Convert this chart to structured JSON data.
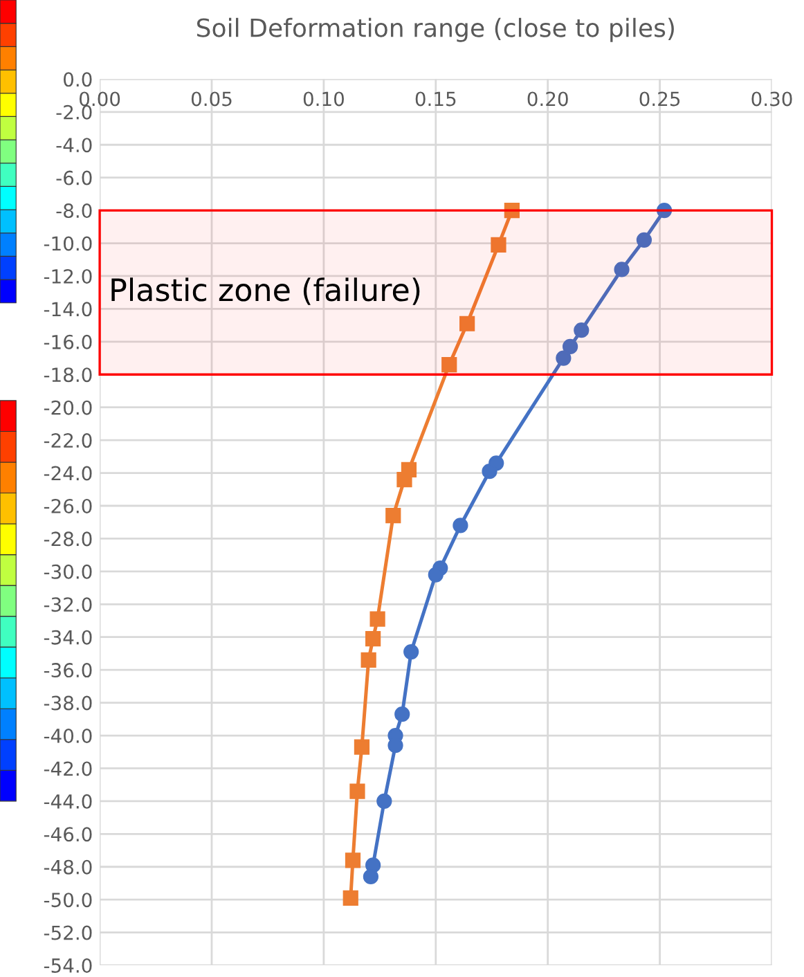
{
  "chart_data": {
    "type": "line",
    "title": "Soil Deformation range (close to piles)",
    "series": [
      {
        "color": "#ed7d31",
        "marker": "square",
        "x": [
          0.184,
          0.178,
          0.164,
          0.156,
          0.138,
          0.136,
          0.131,
          0.124,
          0.122,
          0.12,
          0.117,
          0.115,
          0.113,
          0.112
        ],
        "values": [
          -8.0,
          -10.1,
          -14.9,
          -17.4,
          -23.8,
          -24.4,
          -26.6,
          -32.9,
          -34.1,
          -35.4,
          -40.7,
          -43.4,
          -47.6,
          -49.9
        ]
      },
      {
        "color": "#4472c4",
        "marker": "circle",
        "x": [
          0.252,
          0.243,
          0.233,
          0.215,
          0.21,
          0.207,
          0.177,
          0.174,
          0.161,
          0.152,
          0.15,
          0.139,
          0.135,
          0.132,
          0.132,
          0.127,
          0.122,
          0.121
        ],
        "values": [
          -8.0,
          -9.8,
          -11.6,
          -15.3,
          -16.3,
          -17.0,
          -23.4,
          -23.9,
          -27.2,
          -29.8,
          -30.2,
          -34.9,
          -38.7,
          -40.0,
          -40.6,
          -44.0,
          -47.9,
          -48.6
        ]
      }
    ],
    "xlim": [
      0.0,
      0.3
    ],
    "xticks": [
      {
        "value": 0.0,
        "label": "0.00"
      },
      {
        "value": 0.05,
        "label": "0.05"
      },
      {
        "value": 0.1,
        "label": "0.10"
      },
      {
        "value": 0.15,
        "label": "0.15"
      },
      {
        "value": 0.2,
        "label": "0.20"
      },
      {
        "value": 0.25,
        "label": "0.25"
      },
      {
        "value": 0.3,
        "label": "0.30"
      }
    ],
    "ylim": [
      -54.0,
      0.0
    ],
    "yticks": [
      {
        "value": 0,
        "label": "0.0"
      },
      {
        "value": -2,
        "label": "-2.0"
      },
      {
        "value": -4,
        "label": "-4.0"
      },
      {
        "value": -6,
        "label": "-6.0"
      },
      {
        "value": -8,
        "label": "-8.0"
      },
      {
        "value": -10,
        "label": "-10.0"
      },
      {
        "value": -12,
        "label": "-12.0"
      },
      {
        "value": -14,
        "label": "-14.0"
      },
      {
        "value": -16,
        "label": "-16.0"
      },
      {
        "value": -18,
        "label": "-18.0"
      },
      {
        "value": -20,
        "label": "-20.0"
      },
      {
        "value": -22,
        "label": "-22.0"
      },
      {
        "value": -24,
        "label": "-24.0"
      },
      {
        "value": -26,
        "label": "-26.0"
      },
      {
        "value": -28,
        "label": "-28.0"
      },
      {
        "value": -30,
        "label": "-30.0"
      },
      {
        "value": -32,
        "label": "-32.0"
      },
      {
        "value": -34,
        "label": "-34.0"
      },
      {
        "value": -36,
        "label": "-36.0"
      },
      {
        "value": -38,
        "label": "-38.0"
      },
      {
        "value": -40,
        "label": "-40.0"
      },
      {
        "value": -42,
        "label": "-42.0"
      },
      {
        "value": -44,
        "label": "-44.0"
      },
      {
        "value": -46,
        "label": "-46.0"
      },
      {
        "value": -48,
        "label": "-48.0"
      },
      {
        "value": -50,
        "label": "-50.0"
      },
      {
        "value": -52,
        "label": "-52.0"
      },
      {
        "value": -54,
        "label": "-54.0"
      }
    ],
    "bands": [
      {
        "axis": "y",
        "from": -8.0,
        "to": -18.0,
        "label": "Plastic zone (failure)",
        "color": "#ff0000"
      }
    ],
    "grid": true,
    "line_style": "solid"
  }
}
